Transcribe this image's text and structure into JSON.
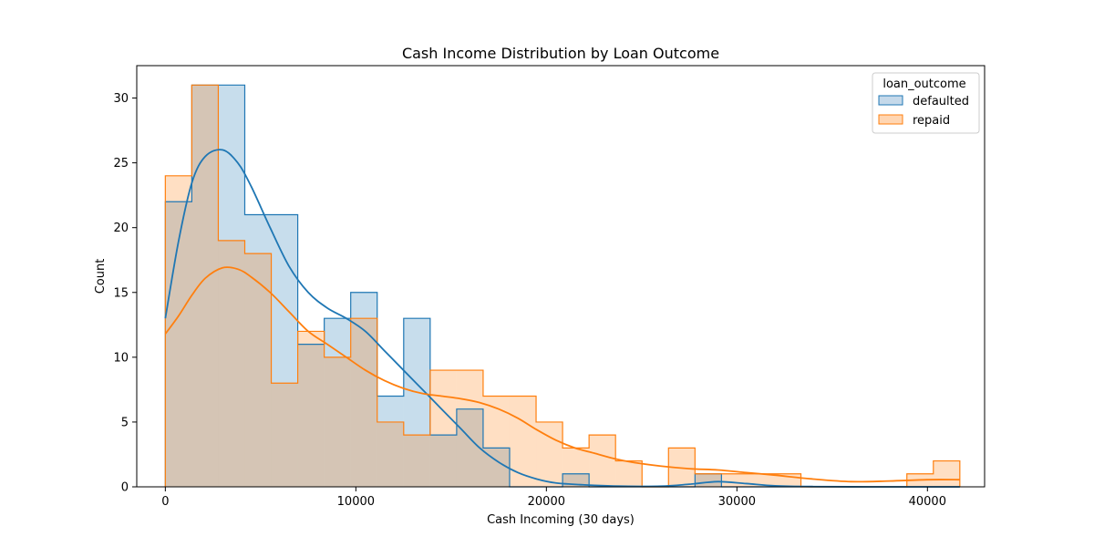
{
  "chart_data": {
    "type": "histogram",
    "title": "Cash Income Distribution by Loan Outcome",
    "xlabel": "Cash Incoming (30 days)",
    "ylabel": "Count",
    "xlim": [
      -1500,
      43000
    ],
    "ylim": [
      0,
      32.5
    ],
    "x_ticks": [
      0,
      10000,
      20000,
      30000,
      40000
    ],
    "y_ticks": [
      0,
      5,
      10,
      15,
      20,
      25,
      30
    ],
    "grid": false,
    "legend": {
      "title": "loan_outcome",
      "placement": "top-right"
    },
    "bin_edges": [
      0,
      1390,
      2780,
      4170,
      5560,
      6950,
      8340,
      9730,
      11120,
      12510,
      13900,
      15290,
      16680,
      18070,
      19460,
      20850,
      22240,
      23630,
      25020,
      26410,
      27800,
      29190,
      30580,
      31970,
      33360,
      34750,
      36140,
      37530,
      38920,
      40310,
      41700
    ],
    "series": [
      {
        "name": "defaulted",
        "color": "#1f77b4",
        "fill": "#c5d9ea",
        "counts": [
          22,
          31,
          31,
          21,
          21,
          11,
          13,
          15,
          7,
          13,
          4,
          6,
          3,
          0,
          0,
          1,
          0,
          0,
          0,
          0,
          1,
          0,
          0,
          0,
          0,
          0,
          0,
          0,
          0,
          0
        ],
        "kde": [
          [
            0,
            13.0
          ],
          [
            700,
            19.0
          ],
          [
            1400,
            23.5
          ],
          [
            2100,
            25.5
          ],
          [
            3000,
            26.0
          ],
          [
            3800,
            25.0
          ],
          [
            4500,
            23.2
          ],
          [
            5500,
            20.0
          ],
          [
            6500,
            17.0
          ],
          [
            7500,
            15.0
          ],
          [
            8500,
            13.8
          ],
          [
            9500,
            13.0
          ],
          [
            10500,
            12.0
          ],
          [
            11500,
            10.5
          ],
          [
            12500,
            9.0
          ],
          [
            13500,
            7.5
          ],
          [
            14500,
            6.0
          ],
          [
            15500,
            4.5
          ],
          [
            16500,
            3.0
          ],
          [
            17500,
            1.9
          ],
          [
            18500,
            1.1
          ],
          [
            19500,
            0.6
          ],
          [
            20500,
            0.3
          ],
          [
            22000,
            0.15
          ],
          [
            24000,
            0.05
          ],
          [
            26000,
            0.05
          ],
          [
            27500,
            0.2
          ],
          [
            29000,
            0.4
          ],
          [
            30500,
            0.25
          ],
          [
            32000,
            0.08
          ],
          [
            34000,
            0.02
          ],
          [
            37000,
            0.0
          ],
          [
            40000,
            0.0
          ],
          [
            41700,
            0.0
          ]
        ]
      },
      {
        "name": "repaid",
        "color": "#ff7f0e",
        "fill": "#ffd6b3",
        "counts": [
          24,
          31,
          19,
          18,
          8,
          12,
          10,
          13,
          5,
          4,
          9,
          9,
          7,
          7,
          5,
          3,
          4,
          2,
          0,
          3,
          1,
          1,
          1,
          1,
          0,
          0,
          0,
          0,
          1,
          2
        ],
        "kde": [
          [
            0,
            11.8
          ],
          [
            700,
            13.2
          ],
          [
            1400,
            14.8
          ],
          [
            2100,
            16.1
          ],
          [
            3000,
            16.9
          ],
          [
            3800,
            16.8
          ],
          [
            4500,
            16.2
          ],
          [
            5500,
            15.0
          ],
          [
            6500,
            13.5
          ],
          [
            7500,
            12.0
          ],
          [
            8500,
            11.0
          ],
          [
            9500,
            10.0
          ],
          [
            10500,
            9.0
          ],
          [
            11500,
            8.2
          ],
          [
            12500,
            7.6
          ],
          [
            13500,
            7.2
          ],
          [
            14500,
            7.0
          ],
          [
            15500,
            6.8
          ],
          [
            16500,
            6.5
          ],
          [
            17500,
            6.0
          ],
          [
            18500,
            5.3
          ],
          [
            19500,
            4.4
          ],
          [
            20500,
            3.6
          ],
          [
            21500,
            3.0
          ],
          [
            22500,
            2.6
          ],
          [
            23500,
            2.2
          ],
          [
            24500,
            1.9
          ],
          [
            26000,
            1.6
          ],
          [
            27500,
            1.4
          ],
          [
            29000,
            1.3
          ],
          [
            30500,
            1.1
          ],
          [
            32000,
            0.9
          ],
          [
            34000,
            0.6
          ],
          [
            36000,
            0.4
          ],
          [
            38000,
            0.45
          ],
          [
            40000,
            0.55
          ],
          [
            41700,
            0.55
          ]
        ]
      }
    ]
  }
}
